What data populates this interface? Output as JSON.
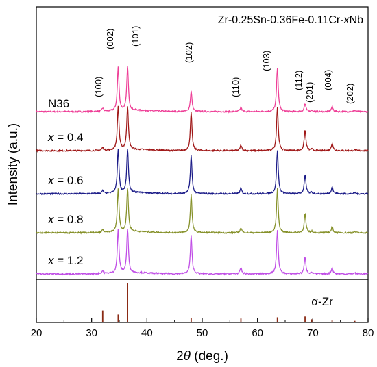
{
  "chart_data": {
    "type": "line",
    "title_parts": [
      "Zr-0.25Sn-0.36Fe-0.11Cr-",
      "x",
      "Nb"
    ],
    "xlabel_parts": [
      "2",
      "θ",
      " (deg.)"
    ],
    "ylabel": "Intensity (a.u.)",
    "xlim": [
      20,
      80
    ],
    "x_ticks": [
      "20",
      "30",
      "40",
      "50",
      "60",
      "70",
      "80"
    ],
    "grid": false,
    "colors": {
      "N36": "#ee3f97",
      "x04": "#a01818",
      "x06": "#1c1c88",
      "x08": "#86912a",
      "x12": "#c04ee6",
      "ref": "#8a2a14"
    },
    "peaks": [
      {
        "label": "(100)",
        "x": 32.0,
        "h": 0.12
      },
      {
        "label": "(002)",
        "x": 34.8,
        "h": 1.6
      },
      {
        "label": "(101)",
        "x": 36.5,
        "h": 1.6
      },
      {
        "label": "(102)",
        "x": 48.0,
        "h": 0.75
      },
      {
        "label": "(110)",
        "x": 57.0,
        "h": 0.15
      },
      {
        "label": "(103)",
        "x": 63.6,
        "h": 1.6
      },
      {
        "label": "(112)",
        "x": 68.6,
        "h": 0.28
      },
      {
        "label": "(201)",
        "x": 69.8,
        "h": 0.05
      },
      {
        "label": "(004)",
        "x": 73.5,
        "h": 0.18
      },
      {
        "label": "(202)",
        "x": 77.6,
        "h": 0.04
      }
    ],
    "series": [
      {
        "name_prefix": "",
        "name": "N36",
        "color": "#ee3f97",
        "values": [
          0.12,
          1.6,
          1.6,
          0.75,
          0.15,
          1.6,
          0.28,
          0.05,
          0.18,
          0.04
        ]
      },
      {
        "name_prefix": "x",
        "name": " = 0.4",
        "color": "#a01818",
        "values": [
          0.1,
          1.6,
          1.6,
          1.4,
          0.2,
          1.6,
          0.75,
          0.05,
          0.28,
          0.04
        ]
      },
      {
        "name_prefix": "x",
        "name": " = 0.6",
        "color": "#1c1c88",
        "values": [
          0.1,
          1.6,
          1.6,
          1.4,
          0.2,
          1.6,
          0.7,
          0.05,
          0.26,
          0.04
        ]
      },
      {
        "name_prefix": "x",
        "name": " = 0.8",
        "color": "#86912a",
        "values": [
          0.1,
          1.6,
          1.6,
          1.4,
          0.18,
          1.6,
          0.7,
          0.05,
          0.22,
          0.04
        ]
      },
      {
        "name_prefix": "x",
        "name": " = 1.2",
        "color": "#c04ee6",
        "values": [
          0.1,
          1.6,
          1.6,
          1.4,
          0.22,
          1.6,
          0.6,
          0.05,
          0.22,
          0.04
        ]
      }
    ],
    "reference": {
      "label": "α-Zr",
      "color": "#8a2a14",
      "sticks": [
        {
          "x": 32.0,
          "rel": 0.3
        },
        {
          "x": 34.8,
          "rel": 0.2
        },
        {
          "x": 36.5,
          "rel": 1.0
        },
        {
          "x": 48.0,
          "rel": 0.12
        },
        {
          "x": 57.0,
          "rel": 0.1
        },
        {
          "x": 63.6,
          "rel": 0.13
        },
        {
          "x": 68.6,
          "rel": 0.15
        },
        {
          "x": 69.8,
          "rel": 0.08
        },
        {
          "x": 73.5,
          "rel": 0.05
        },
        {
          "x": 77.6,
          "rel": 0.04
        }
      ]
    }
  }
}
